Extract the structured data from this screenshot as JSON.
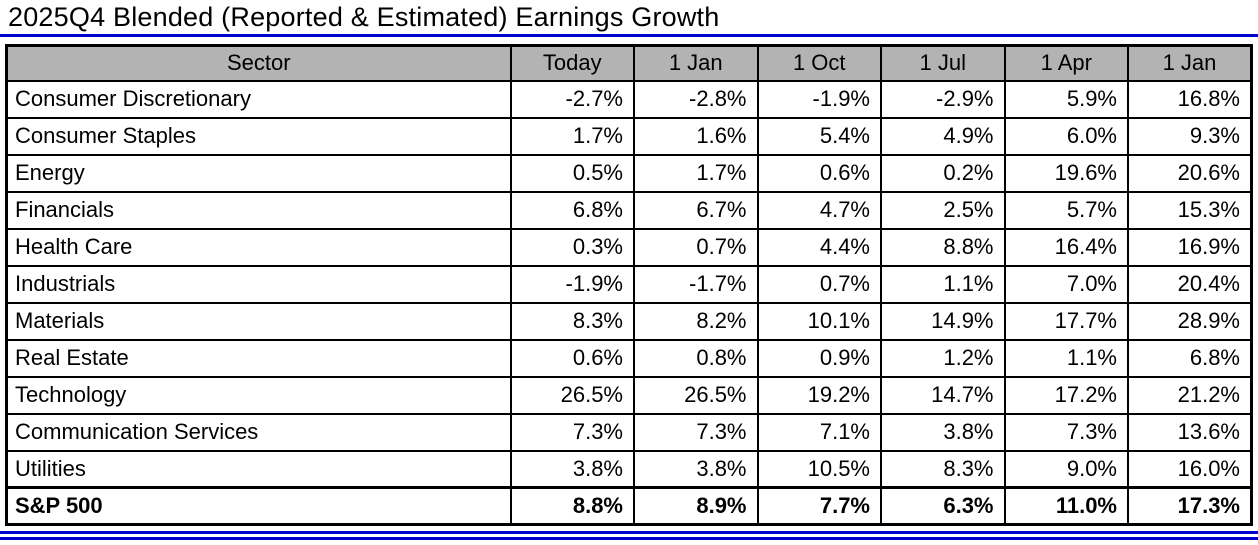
{
  "title": "2025Q4 Blended (Reported & Estimated) Earnings Growth",
  "colors": {
    "rule_blue": "#0000cc",
    "header_bg": "#b3b3b3",
    "table_border": "#000000"
  },
  "chart_data": {
    "type": "table",
    "title": "2025Q4 Blended (Reported & Estimated) Earnings Growth",
    "columns": [
      "Sector",
      "Today",
      "1 Jan",
      "1 Oct",
      "1 Jul",
      "1 Apr",
      "1 Jan"
    ],
    "rows": [
      [
        "Consumer Discretionary",
        "-2.7%",
        "-2.8%",
        "-1.9%",
        "-2.9%",
        "5.9%",
        "16.8%"
      ],
      [
        "Consumer Staples",
        "1.7%",
        "1.6%",
        "5.4%",
        "4.9%",
        "6.0%",
        "9.3%"
      ],
      [
        "Energy",
        "0.5%",
        "1.7%",
        "0.6%",
        "0.2%",
        "19.6%",
        "20.6%"
      ],
      [
        "Financials",
        "6.8%",
        "6.7%",
        "4.7%",
        "2.5%",
        "5.7%",
        "15.3%"
      ],
      [
        "Health Care",
        "0.3%",
        "0.7%",
        "4.4%",
        "8.8%",
        "16.4%",
        "16.9%"
      ],
      [
        "Industrials",
        "-1.9%",
        "-1.7%",
        "0.7%",
        "1.1%",
        "7.0%",
        "20.4%"
      ],
      [
        "Materials",
        "8.3%",
        "8.2%",
        "10.1%",
        "14.9%",
        "17.7%",
        "28.9%"
      ],
      [
        "Real Estate",
        "0.6%",
        "0.8%",
        "0.9%",
        "1.2%",
        "1.1%",
        "6.8%"
      ],
      [
        "Technology",
        "26.5%",
        "26.5%",
        "19.2%",
        "14.7%",
        "17.2%",
        "21.2%"
      ],
      [
        "Communication Services",
        "7.3%",
        "7.3%",
        "7.1%",
        "3.8%",
        "7.3%",
        "13.6%"
      ],
      [
        "Utilities",
        "3.8%",
        "3.8%",
        "10.5%",
        "8.3%",
        "9.0%",
        "16.0%"
      ]
    ],
    "summary_row": [
      "S&P 500",
      "8.8%",
      "8.9%",
      "7.7%",
      "6.3%",
      "11.0%",
      "17.3%"
    ]
  }
}
